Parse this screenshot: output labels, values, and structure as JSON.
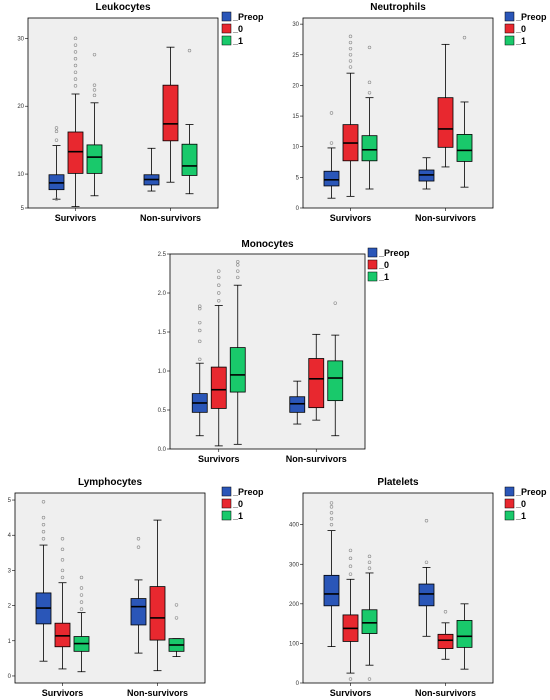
{
  "colors": {
    "Preop": "#2a56b8",
    "_0": "#e8282f",
    "_1": "#19c96b",
    "plot_bg": "#efefef",
    "frame": "#000000"
  },
  "chart_data": [
    {
      "type": "box",
      "title": "Leukocytes",
      "categories": [
        "Survivors",
        "Non-survivors"
      ],
      "legend": [
        "_Preop",
        "_0",
        "_1"
      ],
      "ylim": [
        5,
        33
      ],
      "yticks": [
        5,
        10,
        20,
        30
      ],
      "yticklabels": [
        "5",
        "10",
        "20",
        "30"
      ],
      "series": [
        {
          "key": "Preop",
          "boxes": [
            {
              "min": 6.3,
              "q1": 7.7,
              "median": 8.7,
              "q3": 9.9,
              "max": 14.2,
              "outliers": [
                15,
                16.8,
                16.3,
                6.3
              ]
            },
            {
              "min": 7.5,
              "q1": 8.4,
              "median": 9.2,
              "q3": 9.9,
              "max": 13.8,
              "outliers": []
            }
          ]
        },
        {
          "key": "_0",
          "boxes": [
            {
              "min": 5.2,
              "q1": 10.1,
              "median": 13.3,
              "q3": 16.2,
              "max": 21.8,
              "outliers": [
                23,
                24,
                25,
                26,
                27,
                28,
                29,
                30
              ]
            },
            {
              "min": 8.8,
              "q1": 14.9,
              "median": 17.4,
              "q3": 23.1,
              "max": 28.7,
              "outliers": []
            }
          ]
        },
        {
          "key": "_1",
          "boxes": [
            {
              "min": 6.8,
              "q1": 10.1,
              "median": 12.5,
              "q3": 14.3,
              "max": 20.5,
              "outliers": [
                21.6,
                22.4,
                23.1,
                27.6
              ]
            },
            {
              "min": 7.1,
              "q1": 9.8,
              "median": 11.2,
              "q3": 14.4,
              "max": 17.3,
              "outliers": [
                28.2
              ]
            }
          ]
        }
      ]
    },
    {
      "type": "box",
      "title": "Neutrophils",
      "categories": [
        "Survivors",
        "Non-survivors"
      ],
      "legend": [
        "_Preop",
        "_0",
        "_1"
      ],
      "ylim": [
        0,
        31
      ],
      "yticks": [
        0,
        5,
        10,
        15,
        20,
        25,
        30
      ],
      "yticklabels": [
        "0",
        "5",
        "10",
        "15",
        "20",
        "25",
        "30"
      ],
      "series": [
        {
          "key": "Preop",
          "boxes": [
            {
              "min": 1.6,
              "q1": 3.6,
              "median": 4.6,
              "q3": 6,
              "max": 9.8,
              "outliers": [
                10.6,
                15.5
              ]
            },
            {
              "min": 3.1,
              "q1": 4.4,
              "median": 5.4,
              "q3": 6.2,
              "max": 8.2,
              "outliers": []
            }
          ]
        },
        {
          "key": "_0",
          "boxes": [
            {
              "min": 1.9,
              "q1": 7.7,
              "median": 10.6,
              "q3": 13.6,
              "max": 22,
              "outliers": [
                23,
                24,
                25,
                26,
                27,
                28
              ]
            },
            {
              "min": 6.7,
              "q1": 9.9,
              "median": 12.9,
              "q3": 18,
              "max": 26.7,
              "outliers": []
            }
          ]
        },
        {
          "key": "_1",
          "boxes": [
            {
              "min": 3.1,
              "q1": 7.7,
              "median": 9.5,
              "q3": 11.8,
              "max": 18,
              "outliers": [
                18.8,
                20.5,
                26.2
              ]
            },
            {
              "min": 3.4,
              "q1": 7.6,
              "median": 9.4,
              "q3": 12,
              "max": 17.3,
              "outliers": [
                27.8
              ]
            }
          ]
        }
      ]
    },
    {
      "type": "box",
      "title": "Monocytes",
      "categories": [
        "Survivors",
        "Non-survivors"
      ],
      "legend": [
        "_Preop",
        "_0",
        "_1"
      ],
      "ylim": [
        0,
        2.5
      ],
      "yticks": [
        0,
        0.5,
        1,
        1.5,
        2,
        2.5
      ],
      "yticklabels": [
        "0.0",
        "0.5",
        "1.0",
        "1.5",
        "2.0",
        "2.5"
      ],
      "series": [
        {
          "key": "Preop",
          "boxes": [
            {
              "min": 0.17,
              "q1": 0.47,
              "median": 0.59,
              "q3": 0.71,
              "max": 1.1,
              "outliers": [
                1.15,
                1.38,
                1.52,
                1.62,
                1.8,
                1.83
              ]
            },
            {
              "min": 0.32,
              "q1": 0.47,
              "median": 0.58,
              "q3": 0.67,
              "max": 0.87,
              "outliers": []
            }
          ]
        },
        {
          "key": "_0",
          "boxes": [
            {
              "min": 0.04,
              "q1": 0.52,
              "median": 0.76,
              "q3": 1.05,
              "max": 1.84,
              "outliers": [
                1.9,
                2,
                2.1,
                2.2,
                2.28
              ]
            },
            {
              "min": 0.37,
              "q1": 0.53,
              "median": 0.9,
              "q3": 1.16,
              "max": 1.47,
              "outliers": []
            }
          ]
        },
        {
          "key": "_1",
          "boxes": [
            {
              "min": 0.06,
              "q1": 0.73,
              "median": 0.95,
              "q3": 1.3,
              "max": 2.1,
              "outliers": [
                2.2,
                2.28,
                2.36,
                2.4
              ]
            },
            {
              "min": 0.17,
              "q1": 0.62,
              "median": 0.91,
              "q3": 1.13,
              "max": 1.46,
              "outliers": [
                1.87
              ]
            }
          ]
        }
      ]
    },
    {
      "type": "box",
      "title": "Lymphocytes",
      "categories": [
        "Survivors",
        "Non-survivors"
      ],
      "legend": [
        "_Preop",
        "_0",
        "_1"
      ],
      "ylim": [
        -0.2,
        5.2
      ],
      "yticks": [
        0,
        1,
        2,
        3,
        4,
        5
      ],
      "yticklabels": [
        "0",
        "1",
        "2",
        "3",
        "4",
        "5"
      ],
      "series": [
        {
          "key": "Preop",
          "boxes": [
            {
              "min": 0.42,
              "q1": 1.48,
              "median": 1.93,
              "q3": 2.36,
              "max": 3.72,
              "outliers": [
                3.9,
                4.1,
                4.3,
                4.5,
                4.95
              ]
            },
            {
              "min": 0.65,
              "q1": 1.45,
              "median": 1.97,
              "q3": 2.2,
              "max": 2.73,
              "outliers": [
                3.66,
                3.9
              ]
            }
          ]
        },
        {
          "key": "_0",
          "boxes": [
            {
              "min": 0.2,
              "q1": 0.83,
              "median": 1.14,
              "q3": 1.5,
              "max": 2.65,
              "outliers": [
                2.8,
                3,
                3.3,
                3.6,
                3.9
              ]
            },
            {
              "min": 0.15,
              "q1": 1.02,
              "median": 1.65,
              "q3": 2.54,
              "max": 4.43,
              "outliers": []
            }
          ]
        },
        {
          "key": "_1",
          "boxes": [
            {
              "min": 0.12,
              "q1": 0.7,
              "median": 0.92,
              "q3": 1.12,
              "max": 1.8,
              "outliers": [
                1.9,
                2.1,
                2.3,
                2.5,
                2.8
              ]
            },
            {
              "min": 0.55,
              "q1": 0.7,
              "median": 0.88,
              "q3": 1.06,
              "max": 1.06,
              "outliers": [
                1.65,
                2.02
              ]
            }
          ]
        }
      ]
    },
    {
      "type": "box",
      "title": "Platelets",
      "categories": [
        "Survivors",
        "Non-survivors"
      ],
      "legend": [
        "_Preop",
        "_0",
        "_1"
      ],
      "ylim": [
        0,
        480
      ],
      "yticks": [
        0,
        100,
        200,
        300,
        400
      ],
      "yticklabels": [
        "0",
        "100",
        "200",
        "300",
        "400"
      ],
      "series": [
        {
          "key": "Preop",
          "boxes": [
            {
              "min": 92,
              "q1": 195,
              "median": 225,
              "q3": 272,
              "max": 385,
              "outliers": [
                400,
                415,
                430,
                445,
                455
              ]
            },
            {
              "min": 118,
              "q1": 195,
              "median": 225,
              "q3": 250,
              "max": 292,
              "outliers": [
                305,
                410
              ]
            }
          ]
        },
        {
          "key": "_0",
          "boxes": [
            {
              "min": 25,
              "q1": 105,
              "median": 138,
              "q3": 172,
              "max": 262,
              "outliers": [
                275,
                295,
                315,
                335,
                10
              ]
            },
            {
              "min": 60,
              "q1": 87,
              "median": 108,
              "q3": 123,
              "max": 152,
              "outliers": [
                180
              ]
            }
          ]
        },
        {
          "key": "_1",
          "boxes": [
            {
              "min": 45,
              "q1": 125,
              "median": 152,
              "q3": 185,
              "max": 278,
              "outliers": [
                290,
                305,
                320,
                10
              ]
            },
            {
              "min": 35,
              "q1": 90,
              "median": 118,
              "q3": 158,
              "max": 200,
              "outliers": []
            }
          ]
        }
      ]
    }
  ]
}
